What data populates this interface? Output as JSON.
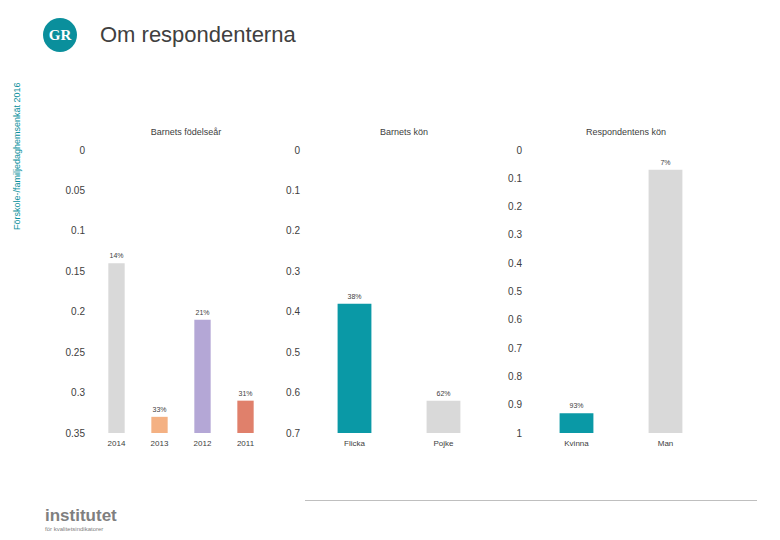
{
  "page": {
    "title": "Om respondenterna",
    "side_text": "Förskole-/familjedaghemsenkät 2016",
    "logo": "GR",
    "footer": "institutet",
    "footer_sub": "för kvalitetsindikatorer"
  },
  "chart_data": [
    {
      "type": "bar",
      "title": "Barnets födelseår",
      "categories": [
        "2014",
        "2013",
        "2012",
        "2011"
      ],
      "values": [
        0.14,
        0.33,
        0.21,
        0.31
      ],
      "value_labels": [
        "14%",
        "33%",
        "21%",
        "31%"
      ],
      "colors": [
        "#d9d9d9",
        "#f4b183",
        "#b4a7d6",
        "#e0806b"
      ],
      "ylim": [
        0,
        0.35
      ],
      "yticks": [
        0,
        0.05,
        0.1,
        0.15,
        0.2,
        0.25,
        0.3,
        0.35
      ],
      "grid": false,
      "data_labels": true
    },
    {
      "type": "bar",
      "title": "Barnets kön",
      "categories": [
        "Flicka",
        "Pojke"
      ],
      "values": [
        0.38,
        0.62
      ],
      "value_labels": [
        "38%",
        "62%"
      ],
      "colors": [
        "#0a99a6",
        "#d9d9d9"
      ],
      "ylim": [
        0,
        0.7
      ],
      "yticks": [
        0,
        0.1,
        0.2,
        0.3,
        0.4,
        0.5,
        0.6,
        0.7
      ],
      "grid": false,
      "data_labels": true
    },
    {
      "type": "bar",
      "title": "Respondentens kön",
      "categories": [
        "Kvinna",
        "Man"
      ],
      "values": [
        0.93,
        0.07
      ],
      "value_labels": [
        "93%",
        "7%"
      ],
      "colors": [
        "#0a99a6",
        "#d9d9d9"
      ],
      "ylim": [
        0,
        1
      ],
      "yticks": [
        0,
        0.1,
        0.2,
        0.3,
        0.4,
        0.5,
        0.6,
        0.7,
        0.8,
        0.9,
        1
      ],
      "grid": false,
      "data_labels": true
    }
  ]
}
